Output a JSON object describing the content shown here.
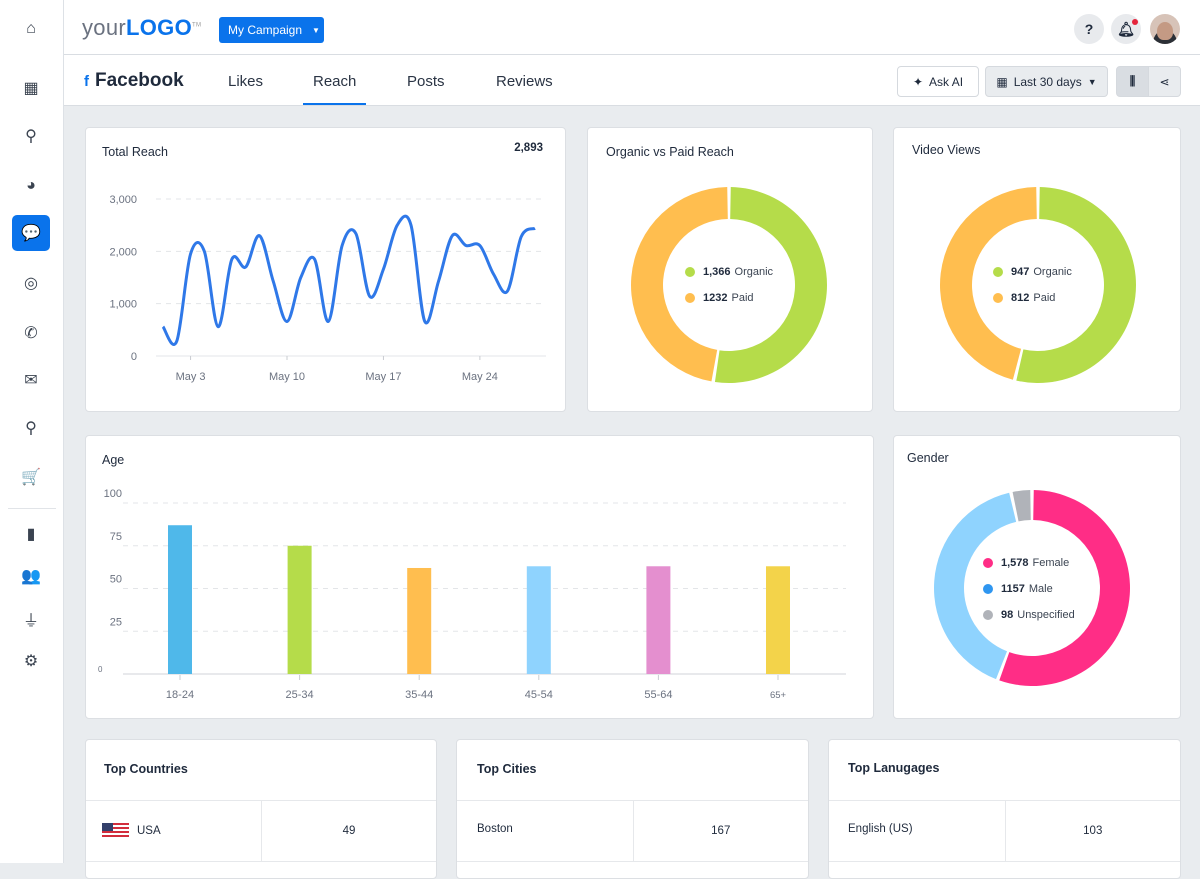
{
  "sidebar": {
    "items": [
      {
        "icon": "home-icon",
        "glyph": "⌂"
      },
      {
        "icon": "dashboard-grid-icon",
        "glyph": "▦"
      },
      {
        "icon": "search-icon",
        "glyph": "⚲"
      },
      {
        "icon": "pie-chart-icon",
        "glyph": "◕"
      },
      {
        "icon": "chat-bubble-icon",
        "glyph": "💬",
        "active": true
      },
      {
        "icon": "target-icon",
        "glyph": "◎"
      },
      {
        "icon": "phone-icon",
        "glyph": "✆"
      },
      {
        "icon": "envelope-icon",
        "glyph": "✉"
      },
      {
        "icon": "map-pin-icon",
        "glyph": "⚲"
      },
      {
        "icon": "cart-icon",
        "glyph": "🛒"
      },
      {
        "icon": "document-icon",
        "glyph": "▮"
      },
      {
        "icon": "users-icon",
        "glyph": "👥"
      },
      {
        "icon": "plug-icon",
        "glyph": "⏚"
      },
      {
        "icon": "gear-icon",
        "glyph": "⚙"
      }
    ]
  },
  "header": {
    "logo_prefix": "your",
    "logo_main": "LOGO",
    "logo_tm": "TM",
    "campaign": "My Campaign",
    "help": "?"
  },
  "subheader": {
    "platform": "Facebook",
    "tabs": [
      "Likes",
      "Reach",
      "Posts",
      "Reviews"
    ],
    "active_tab": "Reach",
    "ask_ai": "Ask AI",
    "date_range": "Last 30 days"
  },
  "colors": {
    "accent": "#0a73eb",
    "organic": "#b5dc4a",
    "paid": "#ffbe4f",
    "female": "#ff2d86",
    "male": "#8fd3fe",
    "male_legend": "#2f96f0",
    "unspecified": "#b0b3b9",
    "line": "#2f78e8"
  },
  "chart_data": [
    {
      "type": "line",
      "title": "Total Reach",
      "total": "2,893",
      "ylim": [
        0,
        3000
      ],
      "yticks": [
        "0",
        "1,000",
        "2,000",
        "3,000"
      ],
      "ytick_values": [
        0,
        1000,
        2000,
        3000
      ],
      "xticks": [
        "May 3",
        "May 10",
        "May 17",
        "May 24"
      ],
      "xtick_days": [
        3,
        10,
        17,
        24
      ],
      "x": [
        "May 1",
        "May 2",
        "May 3",
        "May 4",
        "May 5",
        "May 6",
        "May 7",
        "May 8",
        "May 9",
        "May 10",
        "May 11",
        "May 12",
        "May 13",
        "May 14",
        "May 15",
        "May 16",
        "May 17",
        "May 18",
        "May 19",
        "May 20",
        "May 21",
        "May 22",
        "May 23",
        "May 24",
        "May 25",
        "May 26",
        "May 27",
        "May 28"
      ],
      "values": [
        560,
        285,
        1950,
        2000,
        560,
        1850,
        1700,
        2300,
        1430,
        660,
        1500,
        1850,
        660,
        2110,
        2340,
        1140,
        1660,
        2500,
        2500,
        660,
        1430,
        2300,
        2110,
        2110,
        1560,
        1240,
        2280,
        2440
      ]
    },
    {
      "type": "pie",
      "title": "Organic vs Paid Reach",
      "slices": [
        {
          "value": 1366,
          "label_value": "1,366",
          "name": "Organic"
        },
        {
          "value": 1232,
          "label_value": "1232",
          "name": "Paid"
        }
      ]
    },
    {
      "type": "pie",
      "title": "Video Views",
      "slices": [
        {
          "value": 947,
          "label_value": "947",
          "name": "Organic"
        },
        {
          "value": 812,
          "label_value": "812",
          "name": "Paid"
        }
      ]
    },
    {
      "type": "bar",
      "title": "Age",
      "categories": [
        "18-24",
        "25-34",
        "35-44",
        "45-54",
        "55-64",
        "65+"
      ],
      "values": [
        87,
        75,
        62,
        63,
        63,
        63
      ],
      "ylim": [
        0,
        100
      ],
      "yticks": [
        "0",
        "25",
        "50",
        "75",
        "100"
      ],
      "ytick_values": [
        0,
        25,
        50,
        75,
        100
      ],
      "bar_colors": [
        "#4fb8ea",
        "#b5dc4a",
        "#ffbe4f",
        "#8fd3fe",
        "#e48fcf",
        "#f3d34a"
      ]
    },
    {
      "type": "pie",
      "title": "Gender",
      "slices": [
        {
          "value": 1578,
          "label_value": "1,578",
          "name": "Female"
        },
        {
          "value": 1157,
          "label_value": "1157",
          "name": "Male"
        },
        {
          "value": 98,
          "label_value": "98",
          "name": "Unspecified"
        }
      ]
    }
  ],
  "tables": [
    {
      "title": "Top Countries",
      "rows": [
        {
          "name": "USA",
          "value": "49",
          "flag": "us-flag-icon"
        }
      ]
    },
    {
      "title": "Top Cities",
      "rows": [
        {
          "name": "Boston",
          "value": "167"
        }
      ]
    },
    {
      "title": "Top Lanugages",
      "rows": [
        {
          "name": "English (US)",
          "value": "103"
        }
      ]
    }
  ]
}
